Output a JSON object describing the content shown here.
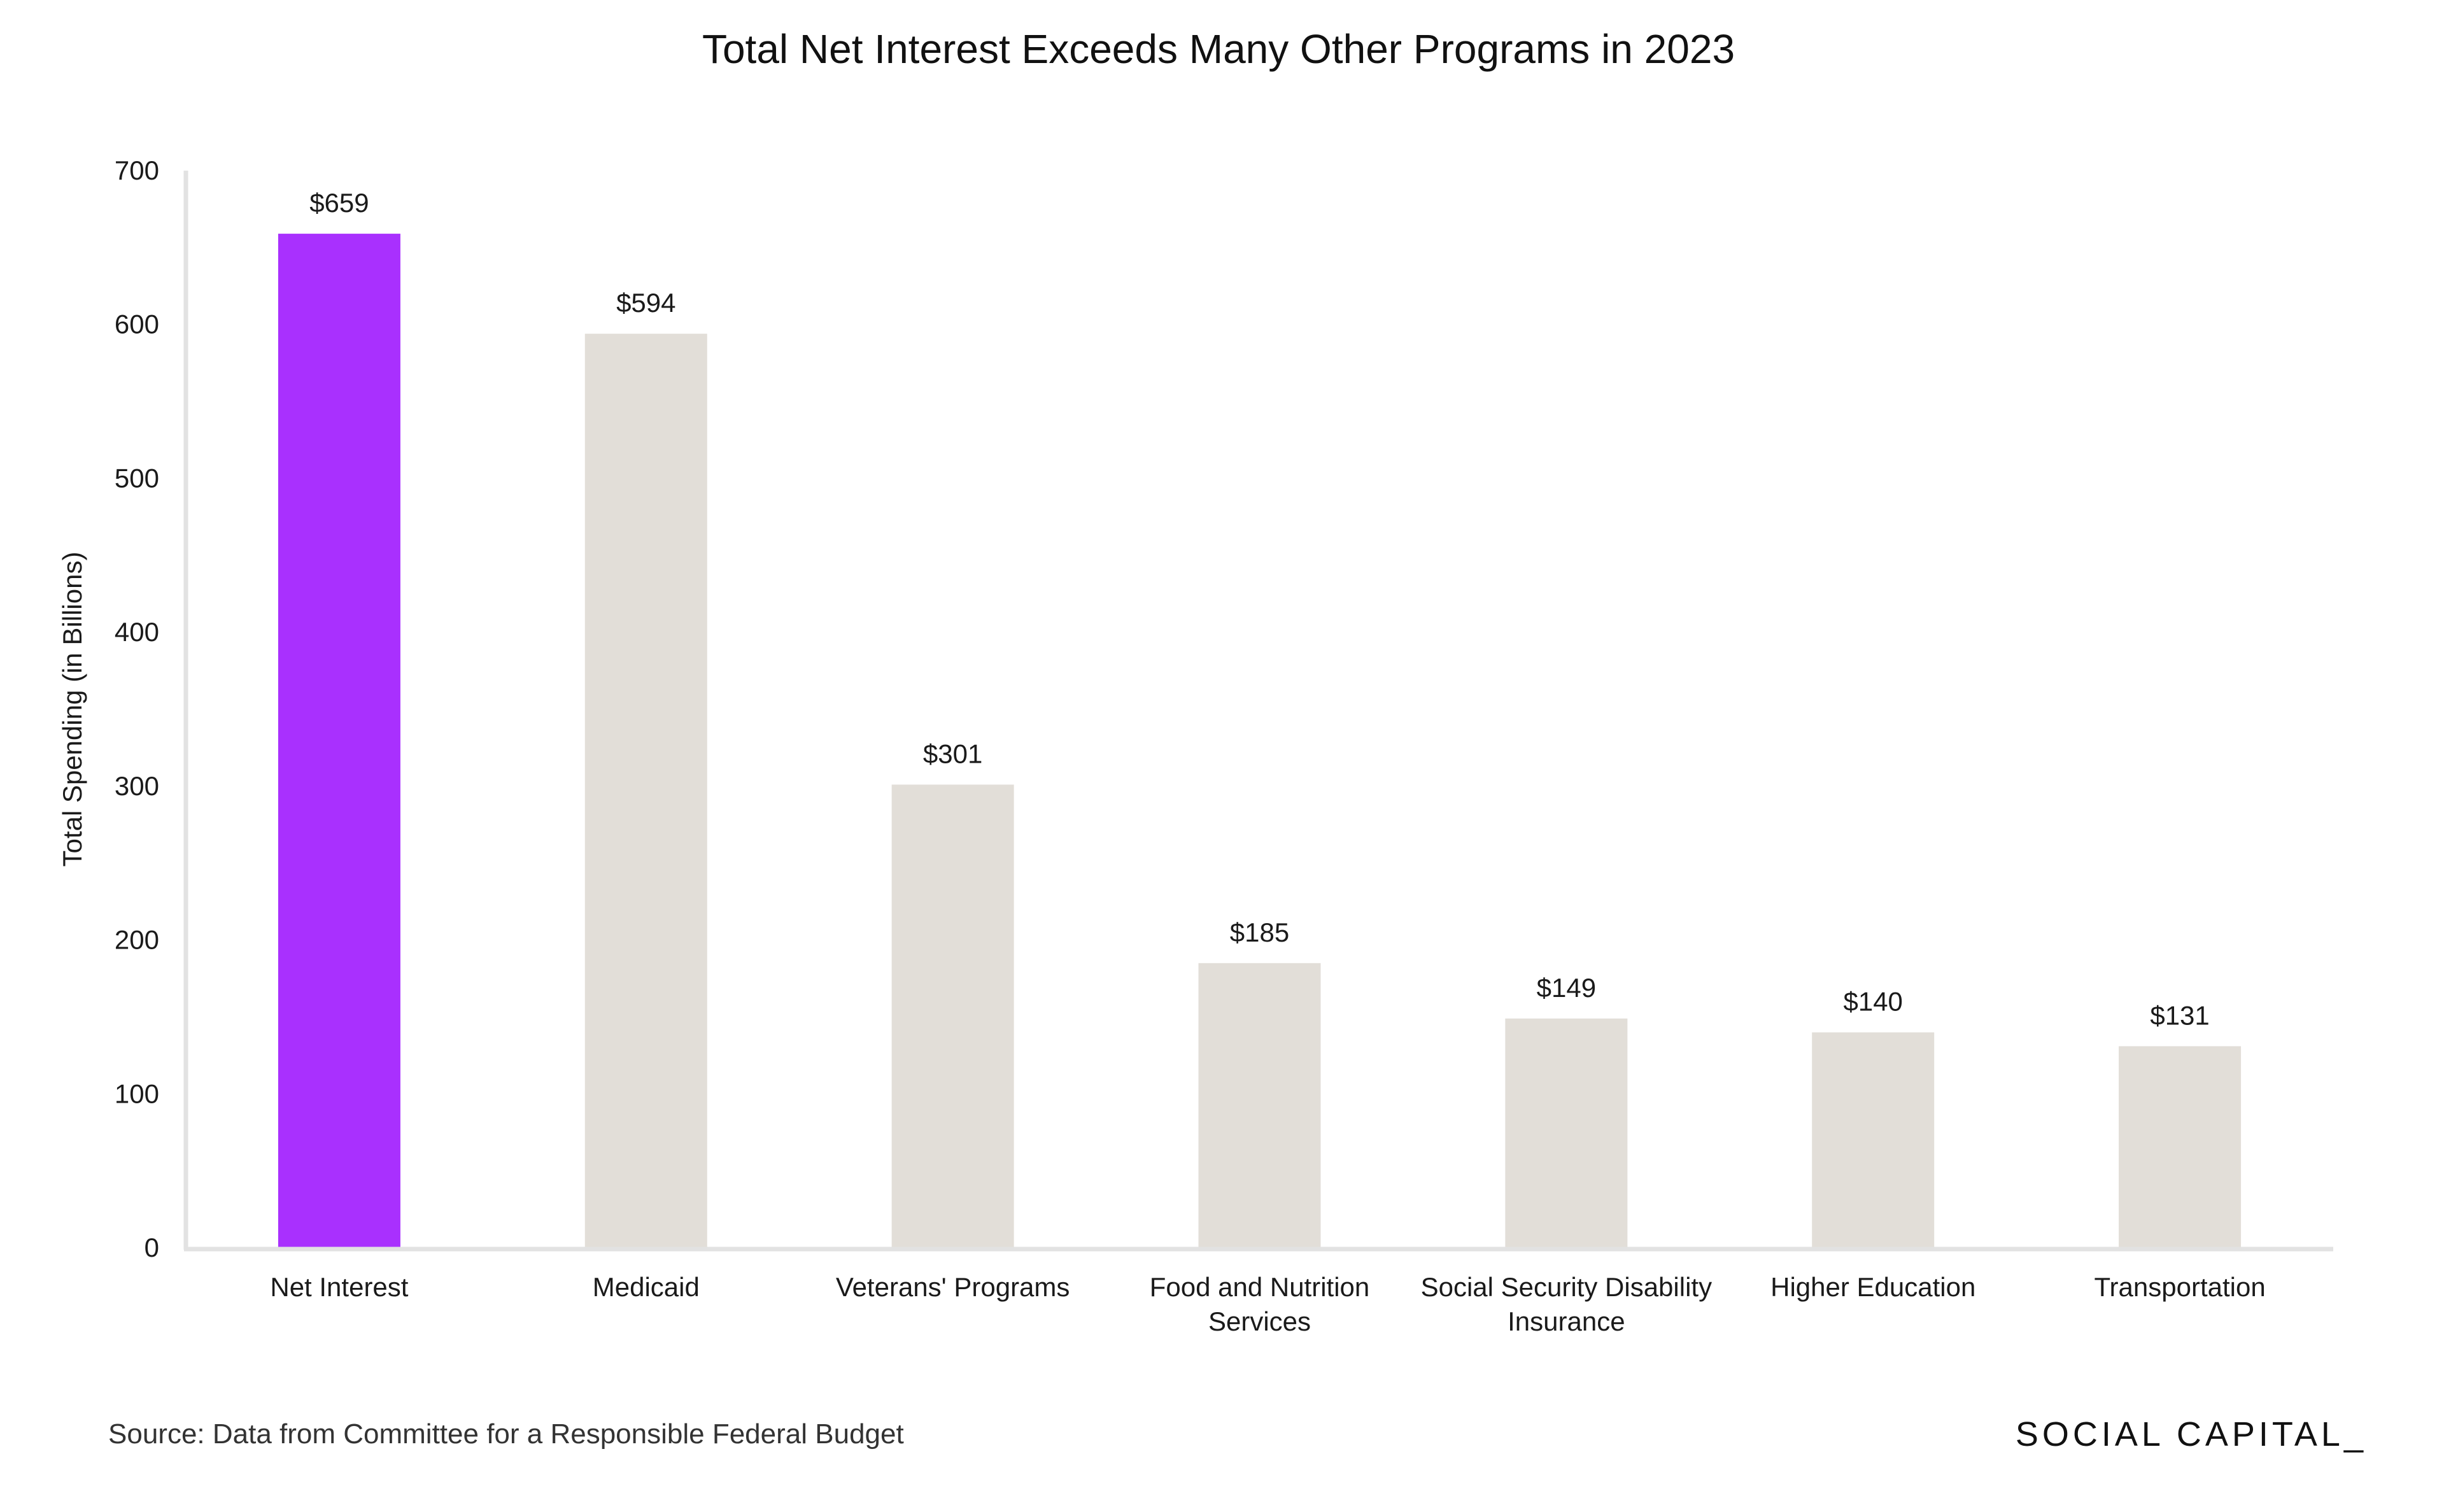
{
  "chart_data": {
    "type": "bar",
    "title": "Total Net Interest Exceeds Many Other Programs in 2023",
    "ylabel": "Total Spending (in Billions)",
    "xlabel": "",
    "ylim": [
      0,
      700
    ],
    "yticks": [
      0,
      100,
      200,
      300,
      400,
      500,
      600,
      700
    ],
    "categories": [
      "Net Interest",
      "Medicaid",
      "Veterans' Programs",
      "Food and Nutrition Services",
      "Social Security Disability Insurance",
      "Higher Education",
      "Transportation"
    ],
    "category_lines": [
      [
        "Net Interest"
      ],
      [
        "Medicaid"
      ],
      [
        "Veterans' Programs"
      ],
      [
        "Food and Nutrition",
        "Services"
      ],
      [
        "Social Security Disability",
        "Insurance"
      ],
      [
        "Higher Education"
      ],
      [
        "Transportation"
      ]
    ],
    "values": [
      659,
      594,
      301,
      185,
      149,
      140,
      131
    ],
    "data_labels": [
      "$659",
      "$594",
      "$301",
      "$185",
      "$149",
      "$140",
      "$131"
    ],
    "colors": {
      "highlight": "#A930FE",
      "bar": "#E2DED8",
      "axis": "#E2E2E2",
      "text": "#1a1a1a"
    },
    "highlight_index": 0,
    "grid": false,
    "legend": "none"
  },
  "footer": {
    "source": "Source: Data from Committee for a Responsible Federal Budget",
    "brand": "SOCIAL CAPITAL_"
  }
}
